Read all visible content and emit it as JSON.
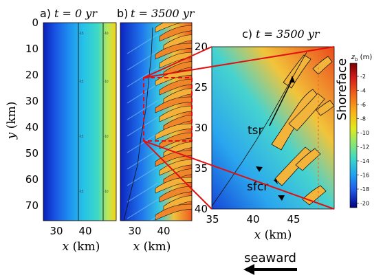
{
  "panels": {
    "a": {
      "label": "a)",
      "title": "t = 0  yr",
      "y_ticks": [
        "0",
        "10",
        "20",
        "30",
        "40",
        "50",
        "60",
        "70"
      ],
      "x_ticks": [
        "30",
        "40"
      ],
      "contour_labels": [
        "-15",
        "-10"
      ]
    },
    "b": {
      "label": "b)",
      "title": "t = 3500  yr",
      "x_ticks": [
        "30",
        "40"
      ]
    },
    "c": {
      "label": "c)",
      "title": "t = 3500  yr",
      "y_ticks": [
        "20",
        "25",
        "30",
        "35",
        "40"
      ],
      "x_ticks": [
        "35",
        "40",
        "45"
      ]
    }
  },
  "axes": {
    "y_label_var": "y",
    "y_label_unit": "(km)",
    "x_label_var": "x",
    "x_label_unit": "(km)"
  },
  "annotations": {
    "tsr": "tsr",
    "sfcr": "sfcr",
    "shoreface": "Shoreface",
    "seaward": "seaward"
  },
  "colorbar": {
    "title": "z",
    "title_sub": "b",
    "unit": "(m)",
    "ticks": [
      "-2",
      "-4",
      "-6",
      "-8",
      "-10",
      "-12",
      "-14",
      "-16",
      "-18",
      "-20"
    ],
    "colors": [
      "#7a0000",
      "#d21c1c",
      "#f2661a",
      "#f8b31a",
      "#e2e81c",
      "#8ee86a",
      "#3bd8c7",
      "#1ea3f2",
      "#2157e8",
      "#10119a",
      "#00007f"
    ]
  }
}
